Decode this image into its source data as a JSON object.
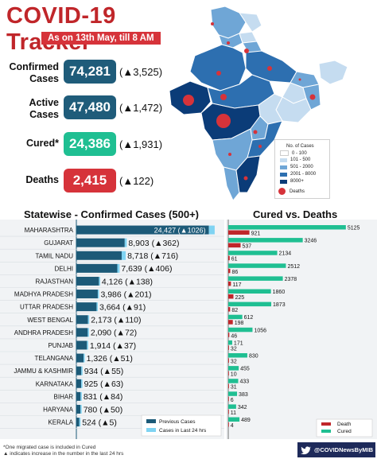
{
  "header": {
    "title": "COVID-19 Tracker",
    "subtitle": "As on 13th May, till 8 AM"
  },
  "stats": [
    {
      "label": "Confirmed Cases",
      "value": "74,281",
      "delta": "(▲3,525)",
      "color": "#1f5c7a"
    },
    {
      "label": "Active Cases",
      "value": "47,480",
      "delta": "(▲1,472)",
      "color": "#1f5c7a"
    },
    {
      "label": "Cured*",
      "value": "24,386",
      "delta": "(▲1,931)",
      "color": "#1fbf92"
    },
    {
      "label": "Deaths",
      "value": "2,415",
      "delta": "(▲122)",
      "color": "#d6333a"
    }
  ],
  "map_legend": {
    "title": "No. of Cases",
    "items": [
      "0 - 100",
      "101 - 500",
      "501 - 2000",
      "2001 - 8000",
      "8000+"
    ],
    "colors": [
      "#ffffff",
      "#c5dcf0",
      "#6fa6d6",
      "#2d6fb0",
      "#0b3c78"
    ],
    "deaths_label": "Deaths",
    "deaths_color": "#d6333a"
  },
  "chart_data": [
    {
      "type": "bar",
      "title": "Statewise - Confirmed Cases (500+)",
      "categories": [
        "MAHARASHTRA",
        "GUJARAT",
        "TAMIL NADU",
        "DELHI",
        "RAJASTHAN",
        "MADHYA PRADESH",
        "UTTAR PRADESH",
        "WEST BENGAL",
        "ANDHRA PRADESH",
        "PUNJAB",
        "TELANGANA",
        "JAMMU & KASHMIR",
        "KARNATAKA",
        "BIHAR",
        "HARYANA",
        "KERALA"
      ],
      "series": [
        {
          "name": "Previous Cases",
          "values": [
            23401,
            8541,
            8002,
            7233,
            3988,
            3785,
            3573,
            2063,
            2018,
            1877,
            1275,
            879,
            862,
            747,
            730,
            519
          ]
        },
        {
          "name": "Cases in Last 24 hrs",
          "values": [
            1026,
            362,
            716,
            406,
            138,
            201,
            91,
            110,
            72,
            37,
            51,
            55,
            63,
            84,
            50,
            5
          ]
        }
      ],
      "data_labels": [
        "24,427 (▲1026)",
        "8,903 (▲362)",
        "8,718 (▲716)",
        "7,639 (▲406)",
        "4,126 (▲138)",
        "3,986 (▲201)",
        "3,664 (▲91)",
        "2,173 (▲110)",
        "2,090 (▲72)",
        "1,914 (▲37)",
        "1,326 (▲51)",
        "934 (▲55)",
        "925 (▲63)",
        "831 (▲84)",
        "780 (▲50)",
        "524 (▲5)"
      ],
      "colors": {
        "previous": "#1c5a78",
        "last24": "#7fd3f2"
      },
      "xlim": [
        0,
        25000
      ]
    },
    {
      "type": "bar",
      "title": "Cured vs. Deaths",
      "categories": [
        "MAHARASHTRA",
        "GUJARAT",
        "TAMIL NADU",
        "DELHI",
        "RAJASTHAN",
        "MADHYA PRADESH",
        "UTTAR PRADESH",
        "WEST BENGAL",
        "ANDHRA PRADESH",
        "PUNJAB",
        "TELANGANA",
        "JAMMU & KASHMIR",
        "KARNATAKA",
        "BIHAR",
        "HARYANA",
        "KERALA"
      ],
      "series": [
        {
          "name": "Death",
          "values": [
            921,
            537,
            61,
            86,
            117,
            225,
            82,
            198,
            46,
            32,
            32,
            10,
            31,
            6,
            11,
            4
          ]
        },
        {
          "name": "Cured",
          "values": [
            5125,
            3246,
            2134,
            2512,
            2378,
            1860,
            1873,
            612,
            1056,
            171,
            830,
            455,
            433,
            383,
            342,
            489
          ]
        }
      ],
      "colors": {
        "death": "#c0262a",
        "cured": "#1fbf92"
      },
      "xlim": [
        0,
        5200
      ]
    }
  ],
  "footnotes": [
    "*One migrated case is included in Cured",
    "▲ indicates increase in the number in the last 24 hrs"
  ],
  "credit": "@COVIDNewsByMIB"
}
